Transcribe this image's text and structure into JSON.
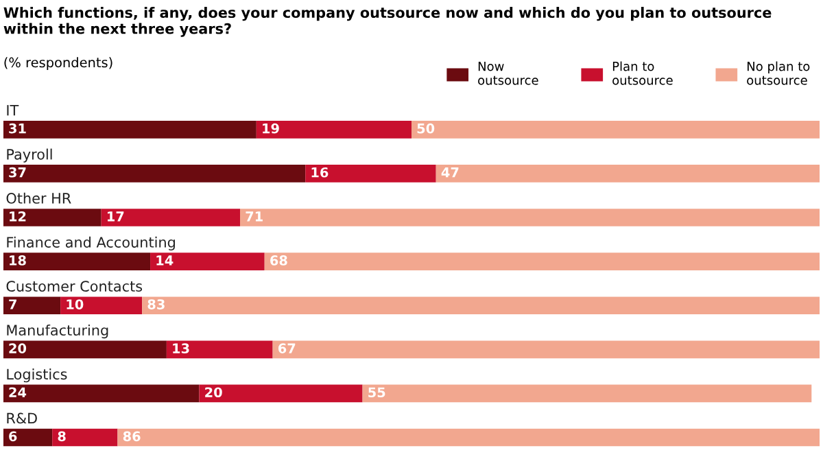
{
  "chart_data": {
    "type": "bar",
    "orientation": "horizontal",
    "stacked": true,
    "data_labels": true,
    "legend": "top right",
    "title": "Which functions, if any, does your company outsource now and which do you plan to outsource within the next three years?",
    "subtitle": "(% respondents)",
    "categories": [
      "IT",
      "Payroll",
      "Other HR",
      "Finance and Accounting",
      "Customer Contacts",
      "Manufacturing",
      "Logistics",
      "R&D"
    ],
    "series": [
      {
        "name": "Now\noutsource",
        "color": "#6b0b10",
        "values": [
          31,
          37,
          12,
          18,
          7,
          20,
          24,
          6
        ]
      },
      {
        "name": "Plan to\noutsource",
        "color": "#c8102e",
        "values": [
          19,
          16,
          17,
          14,
          10,
          13,
          20,
          8
        ]
      },
      {
        "name": "No plan to\noutsource",
        "color": "#f2a78f",
        "values": [
          50,
          47,
          71,
          68,
          83,
          67,
          55,
          86
        ]
      }
    ]
  }
}
